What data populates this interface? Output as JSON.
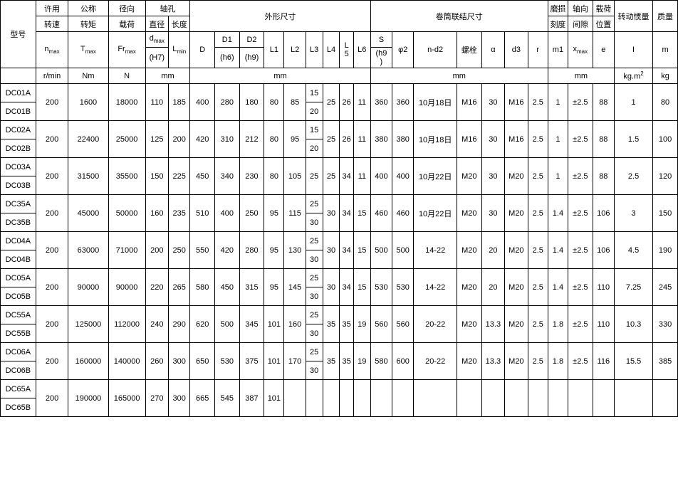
{
  "background_color": "#ffffff",
  "border_color": "#000000",
  "text_color": "#000000",
  "font_size_pt": 8,
  "headers": {
    "row1": {
      "c0": "型号",
      "c1": "许用",
      "c2": "公称",
      "c3": "径向",
      "c4": "轴孔",
      "c6": "外形尺寸",
      "c15": "卷筒联结尺寸",
      "c22": "磨损",
      "c23": "轴向",
      "c24": "载荷",
      "c25": "转动惯量",
      "c26": "质量"
    },
    "row2": {
      "c1": "转速",
      "c2": "转矩",
      "c3": "载荷",
      "c4": "直径",
      "c5": "长度",
      "c22": "刻度",
      "c23": "间隙",
      "c24": "位置"
    },
    "row3": {
      "c1": "n_max",
      "c2": "T_max",
      "c3": "Fr_max",
      "c4": "d_max(H7)",
      "c5": "L_min",
      "c6": "D",
      "c7": "D1(h6)",
      "c8": "D2(h9)",
      "c9": "L1",
      "c10": "L2",
      "c11": "L3",
      "c12": "L4",
      "c13": "L5",
      "c14": "L6",
      "c15": "S(h9)",
      "c16": "φ2",
      "c17": "n-d2",
      "c18": "螺栓",
      "c19": "α",
      "c20": "d3",
      "c21": "r",
      "c22": "m1",
      "c23": "x_max",
      "c24": "e",
      "c25": "I",
      "c26": "m"
    },
    "units": {
      "c1": "r/min",
      "c2": "Nm",
      "c3": "N",
      "c4": "mm",
      "c6": "mm",
      "c15": "mm",
      "c22": "mm",
      "c25": "kg.m²",
      "c26": "kg"
    }
  },
  "rows": [
    {
      "modelA": "DC01A",
      "modelB": "DC01B",
      "v": [
        "200",
        "1600",
        "18000",
        "110",
        "185",
        "400",
        "280",
        "180",
        "80",
        "85",
        "15",
        "20",
        "25",
        "26",
        "11",
        "360",
        "360",
        "10月18日",
        "M16",
        "30",
        "M16",
        "2.5",
        "1",
        "±2.5",
        "88",
        "1",
        "80"
      ]
    },
    {
      "modelA": "DC02A",
      "modelB": "DC02B",
      "v": [
        "200",
        "22400",
        "25000",
        "125",
        "200",
        "420",
        "310",
        "212",
        "80",
        "95",
        "15",
        "20",
        "25",
        "26",
        "11",
        "380",
        "380",
        "10月18日",
        "M16",
        "30",
        "M16",
        "2.5",
        "1",
        "±2.5",
        "88",
        "1.5",
        "100"
      ]
    },
    {
      "modelA": "DC03A",
      "modelB": "DC03B",
      "v": [
        "200",
        "31500",
        "35500",
        "150",
        "225",
        "450",
        "340",
        "230",
        "80",
        "105",
        "25",
        "",
        "25",
        "34",
        "11",
        "400",
        "400",
        "10月22日",
        "M20",
        "30",
        "M20",
        "2.5",
        "1",
        "±2.5",
        "88",
        "2.5",
        "120"
      ]
    },
    {
      "modelA": "DC35A",
      "modelB": "DC35B",
      "v": [
        "200",
        "45000",
        "50000",
        "160",
        "235",
        "510",
        "400",
        "250",
        "95",
        "115",
        "25",
        "30",
        "30",
        "34",
        "15",
        "460",
        "460",
        "10月22日",
        "M20",
        "30",
        "M20",
        "2.5",
        "1.4",
        "±2.5",
        "106",
        "3",
        "150"
      ]
    },
    {
      "modelA": "DC04A",
      "modelB": "DC04B",
      "v": [
        "200",
        "63000",
        "71000",
        "200",
        "250",
        "550",
        "420",
        "280",
        "95",
        "130",
        "25",
        "30",
        "30",
        "34",
        "15",
        "500",
        "500",
        "14-22",
        "M20",
        "20",
        "M20",
        "2.5",
        "1.4",
        "±2.5",
        "106",
        "4.5",
        "190"
      ]
    },
    {
      "modelA": "DC05A",
      "modelB": "DC05B",
      "v": [
        "200",
        "90000",
        "90000",
        "220",
        "265",
        "580",
        "450",
        "315",
        "95",
        "145",
        "25",
        "30",
        "30",
        "34",
        "15",
        "530",
        "530",
        "14-22",
        "M20",
        "20",
        "M20",
        "2.5",
        "1.4",
        "±2.5",
        "110",
        "7.25",
        "245"
      ]
    },
    {
      "modelA": "DC55A",
      "modelB": "DC55B",
      "v": [
        "200",
        "125000",
        "112000",
        "240",
        "290",
        "620",
        "500",
        "345",
        "101",
        "160",
        "25",
        "30",
        "35",
        "35",
        "19",
        "560",
        "560",
        "20-22",
        "M20",
        "13.3",
        "M20",
        "2.5",
        "1.8",
        "±2.5",
        "110",
        "10.3",
        "330"
      ]
    },
    {
      "modelA": "DC06A",
      "modelB": "DC06B",
      "v": [
        "200",
        "160000",
        "140000",
        "260",
        "300",
        "650",
        "530",
        "375",
        "101",
        "170",
        "25",
        "30",
        "35",
        "35",
        "19",
        "580",
        "600",
        "20-22",
        "M20",
        "13.3",
        "M20",
        "2.5",
        "1.8",
        "±2.5",
        "116",
        "15.5",
        "385"
      ]
    },
    {
      "modelA": "DC65A",
      "modelB": "DC65B",
      "v": [
        "200",
        "190000",
        "165000",
        "270",
        "300",
        "665",
        "545",
        "387",
        "101",
        "",
        "",
        "",
        "",
        "",
        "",
        "",
        "",
        "",
        "",
        "",
        "",
        "",
        "",
        "",
        "",
        "",
        ""
      ]
    }
  ]
}
